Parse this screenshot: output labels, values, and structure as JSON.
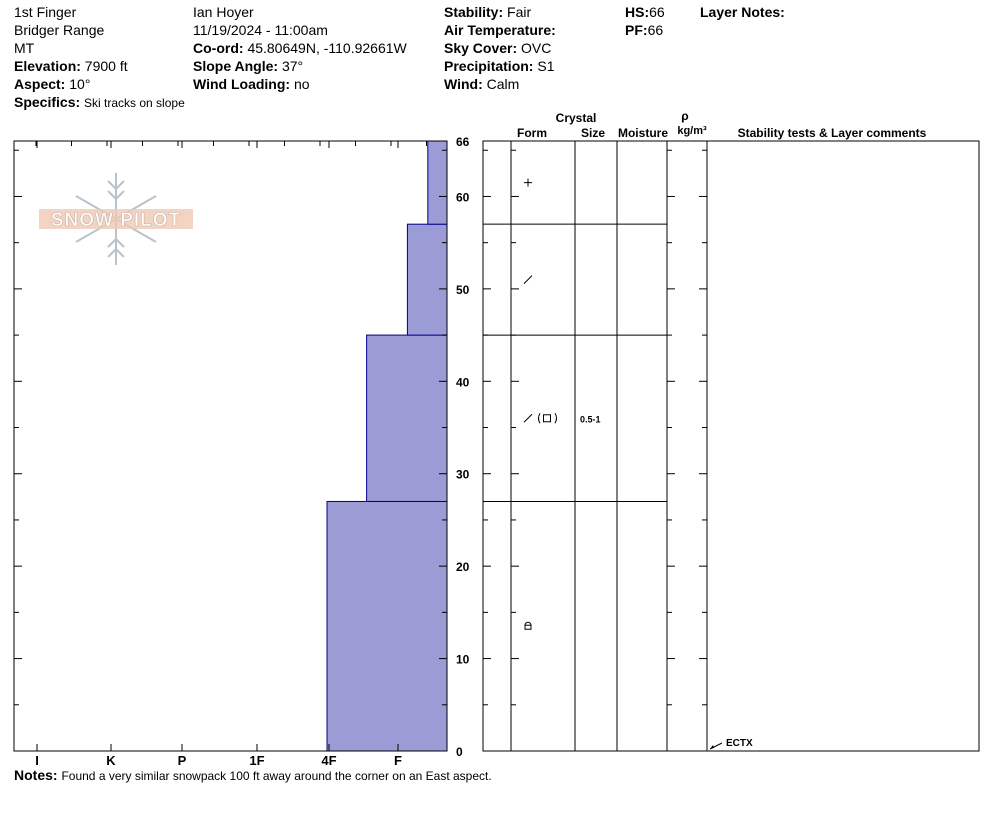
{
  "header": {
    "location": "1st Finger",
    "range": "Bridger Range",
    "state": "MT",
    "elevation_label": "Elevation:",
    "elevation": "7900 ft",
    "aspect_label": "Aspect:",
    "aspect": "10°",
    "specifics_label": "Specifics:",
    "specifics": "Ski tracks on slope",
    "observer": "Ian Hoyer",
    "datetime": "11/19/2024 - 11:00am",
    "coord_label": "Co-ord:",
    "coord": "45.80649N, -110.92661W",
    "slope_label": "Slope Angle:",
    "slope": "37°",
    "windload_label": "Wind Loading:",
    "windload": "no",
    "stability_label": "Stability:",
    "stability": "Fair",
    "airtemp_label": "Air Temperature:",
    "skycover_label": "Sky Cover:",
    "skycover": "OVC",
    "precip_label": "Precipitation:",
    "precip": "S1",
    "wind_label": "Wind:",
    "wind": "Calm",
    "hs_label": "HS:",
    "hs": "66",
    "pf_label": "PF:",
    "pf": "66",
    "layer_notes_label": "Layer Notes:"
  },
  "logo": {
    "text": "SNOW PILOT"
  },
  "columns": {
    "crystal": "Crystal",
    "form": "Form",
    "size": "Size",
    "moisture": "Moisture",
    "rho": "ρ",
    "density_unit": "kg/m³",
    "stability": "Stability tests & Layer comments"
  },
  "notes": {
    "label": "Notes:",
    "text": "Found a very similar snowpack 100 ft away around the corner on an East aspect."
  },
  "chart_data": {
    "type": "bar",
    "orientation": "horizontal-step",
    "x_categories": [
      "I",
      "K",
      "P",
      "1F",
      "4F",
      "F"
    ],
    "y_ticks": [
      0,
      10,
      20,
      30,
      40,
      50,
      60,
      66
    ],
    "ylim": [
      0,
      66
    ],
    "hardness_scale": {
      "F": 0,
      "4F": 1,
      "1F": 2,
      "P": 3,
      "K": 4,
      "I": 5
    },
    "layers": [
      {
        "bottom": 0,
        "top": 27,
        "hardness": "4F",
        "hardness_value": 1.0,
        "form_icon": "rounding-facets",
        "size": ""
      },
      {
        "bottom": 27,
        "top": 45,
        "hardness": "4F-",
        "hardness_value": 0.67,
        "form_icon": "facets-with-rounding",
        "size": "0.5-1"
      },
      {
        "bottom": 45,
        "top": 57,
        "hardness": "F+",
        "hardness_value": 0.33,
        "form_icon": "decomposing-fragments",
        "size": ""
      },
      {
        "bottom": 57,
        "top": 66,
        "hardness": "F",
        "hardness_value": 0.16,
        "form_icon": "precipitation-particles",
        "size": ""
      }
    ],
    "fill_color": "#9b9bd6",
    "stroke_color": "#00008b",
    "stability_tests": [
      {
        "depth": 0,
        "label": "ECTX"
      }
    ]
  }
}
